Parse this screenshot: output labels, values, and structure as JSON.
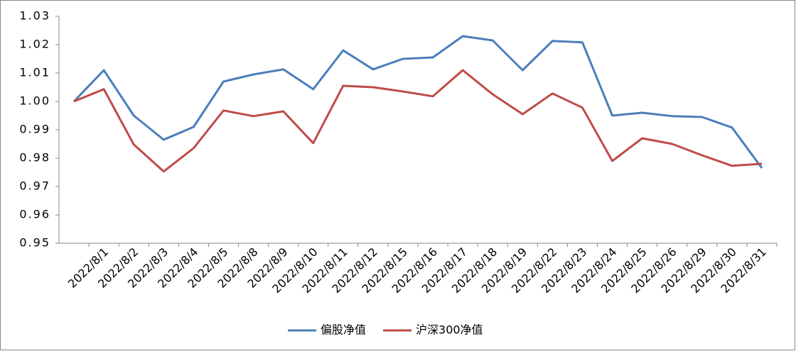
{
  "chart_data": {
    "type": "line",
    "categories": [
      null,
      "2022/8/1",
      "2022/8/2",
      "2022/8/3",
      "2022/8/4",
      "2022/8/5",
      "2022/8/8",
      "2022/8/9",
      "2022/8/10",
      "2022/8/11",
      "2022/8/12",
      "2022/8/15",
      "2022/8/16",
      "2022/8/17",
      "2022/8/18",
      "2022/8/19",
      "2022/8/22",
      "2022/8/23",
      "2022/8/24",
      "2022/8/25",
      "2022/8/26",
      "2022/8/29",
      "2022/8/30",
      "2022/8/31"
    ],
    "series": [
      {
        "name": "偏股净值",
        "color": "#4a7ebb",
        "values": [
          1.0,
          1.011,
          0.995,
          0.9865,
          0.991,
          1.007,
          1.0095,
          1.0113,
          1.0043,
          1.018,
          1.0113,
          1.015,
          1.0155,
          1.023,
          1.0215,
          1.011,
          1.0213,
          1.0208,
          0.995,
          0.996,
          0.9948,
          0.9945,
          0.9908,
          0.9765
        ]
      },
      {
        "name": "沪深300净值",
        "color": "#be4b48",
        "values": [
          1.0,
          1.0043,
          0.9848,
          0.9753,
          0.9835,
          0.9968,
          0.9948,
          0.9965,
          0.9853,
          1.0055,
          1.005,
          1.0035,
          1.0018,
          1.011,
          1.0025,
          0.9955,
          1.0028,
          0.9978,
          0.979,
          0.987,
          0.985,
          0.981,
          0.9773,
          0.978
        ]
      }
    ],
    "ylim": [
      0.95,
      1.03
    ],
    "yticks": [
      {
        "value": 0.95,
        "label": "0.95"
      },
      {
        "value": 0.96,
        "label": "0.96"
      },
      {
        "value": 0.97,
        "label": "0.97"
      },
      {
        "value": 0.98,
        "label": "0.98"
      },
      {
        "value": 0.99,
        "label": "0.99"
      },
      {
        "value": 1.0,
        "label": "1.00"
      },
      {
        "value": 1.01,
        "label": "1.01"
      },
      {
        "value": 1.02,
        "label": "1.02"
      },
      {
        "value": 1.03,
        "label": "1.03"
      }
    ],
    "grid": false,
    "legend": "bottom"
  }
}
